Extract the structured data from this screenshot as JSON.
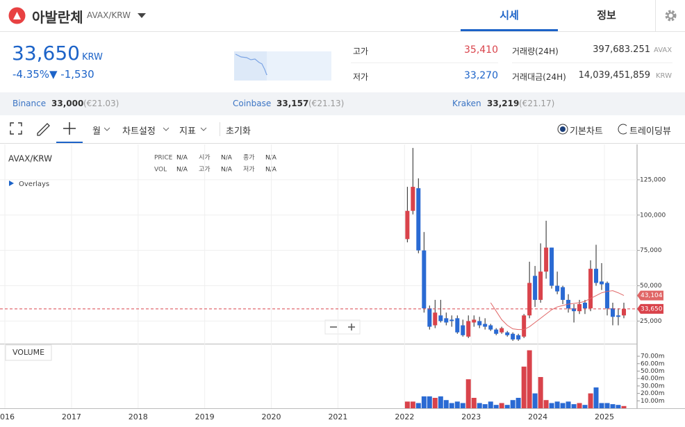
{
  "header": {
    "name": "아발란체",
    "symbol": "AVAX/KRW",
    "tabs": [
      "시세",
      "정보"
    ]
  },
  "price": {
    "value": "33,650",
    "unit": "KRW",
    "change_percent": "-4.35%",
    "change": "▼ -1,530"
  },
  "stats": [
    {
      "label": "고가",
      "value": "35,410"
    },
    {
      "label": "저가",
      "value": "33,270"
    },
    {
      "label": "거래량(24H)",
      "value": "397,683.251",
      "unit": "AVAX"
    },
    {
      "label": "거래대금(24H)",
      "value": "14,039,451,859",
      "unit": "KRW"
    }
  ],
  "exchanges": [
    {
      "name": "Binance",
      "price": "33,000",
      "eur": "(€21.03)"
    },
    {
      "name": "Coinbase",
      "price": "33,157",
      "eur": "(€21.13)"
    },
    {
      "name": "Kraken",
      "price": "33,219",
      "eur": "(€21.17)"
    }
  ],
  "toolbar": {
    "period": "월",
    "settings": "차트설정",
    "indicators": "지표",
    "reset": "초기화",
    "modes": [
      "기본차트",
      "트레이딩뷰"
    ]
  },
  "chart_legend": {
    "symbol": "AVAX/KRW",
    "overlays": "Overlays",
    "fields": [
      {
        "label": "PRICE",
        "value": "N/A"
      },
      {
        "label": "시가",
        "value": "N/A"
      },
      {
        "label": "종가",
        "value": "N/A"
      },
      {
        "label": "VOL",
        "value": "N/A"
      },
      {
        "label": "고가",
        "value": "N/A"
      },
      {
        "label": "저가",
        "value": "N/A"
      }
    ]
  },
  "chart_data": {
    "type": "candlestick",
    "x": [
      2022.042,
      2022.125,
      2022.208,
      2022.292,
      2022.375,
      2022.458,
      2022.542,
      2022.625,
      2022.708,
      2022.792,
      2022.875,
      2022.958,
      2023.042,
      2023.125,
      2023.208,
      2023.292,
      2023.375,
      2023.458,
      2023.542,
      2023.625,
      2023.708,
      2023.792,
      2023.875,
      2023.958,
      2024.042,
      2024.125,
      2024.208,
      2024.292,
      2024.375,
      2024.458,
      2024.542,
      2024.625,
      2024.708,
      2024.792,
      2024.875,
      2024.958,
      2025.042,
      2025.125,
      2025.208,
      2025.292
    ],
    "open": [
      83000,
      103000,
      119000,
      75000,
      34000,
      22000,
      29000,
      27000,
      26000,
      27000,
      22000,
      14000,
      24000,
      25000,
      23000,
      22000,
      19000,
      17000,
      17000,
      16000,
      15000,
      14000,
      29000,
      57000,
      40000,
      60000,
      77000,
      50000,
      49000,
      40000,
      34000,
      32000,
      38000,
      34000,
      62000,
      53000,
      52000,
      34000,
      29000,
      29000
    ],
    "high": [
      120000,
      147500,
      126000,
      88000,
      36000,
      40000,
      40000,
      31000,
      29000,
      29000,
      26000,
      29000,
      29000,
      28000,
      27000,
      23000,
      20000,
      21000,
      18000,
      17000,
      16000,
      30000,
      67000,
      64000,
      80000,
      96000,
      77000,
      60000,
      50000,
      44000,
      37000,
      40000,
      40000,
      68000,
      79000,
      66000,
      53000,
      38000,
      34000,
      38000
    ],
    "low": [
      80700,
      100500,
      73000,
      31000,
      19000,
      20000,
      24000,
      22000,
      21000,
      16000,
      14000,
      13000,
      21000,
      20000,
      19000,
      18000,
      15000,
      16000,
      14000,
      11000,
      11000,
      13000,
      27000,
      35000,
      38000,
      55000,
      48000,
      44000,
      37000,
      31000,
      24000,
      30000,
      30000,
      32000,
      50000,
      47000,
      29000,
      22000,
      22000,
      27000
    ],
    "close": [
      103000,
      120000,
      75000,
      34000,
      21000,
      31000,
      25000,
      24000,
      25000,
      17000,
      15000,
      25000,
      26000,
      22000,
      21000,
      19000,
      16000,
      20000,
      15000,
      12000,
      12000,
      29000,
      52000,
      40000,
      60000,
      77000,
      50000,
      46000,
      40000,
      34000,
      32000,
      37000,
      34000,
      62000,
      52000,
      51000,
      34000,
      28000,
      28000,
      33650
    ],
    "up_color": "#d9434b",
    "down_color": "#2a6ad3",
    "xlim": [
      2015.927,
      2025.49
    ],
    "xticks": [
      2016,
      2017,
      2018,
      2019,
      2020,
      2021,
      2022,
      2023,
      2024,
      2025
    ],
    "ylim": [
      9000,
      150000
    ],
    "yticks": [
      {
        "value": 25000,
        "label": "25,000"
      },
      {
        "value": 50000,
        "label": "50,000"
      },
      {
        "value": 75000,
        "label": "75,000"
      },
      {
        "value": 100000,
        "label": "100,000"
      },
      {
        "value": 125000,
        "label": "125,000"
      }
    ],
    "grid": true,
    "moving_average": {
      "color": "#e06666",
      "values": [
        null,
        null,
        null,
        null,
        null,
        null,
        null,
        null,
        null,
        null,
        null,
        null,
        null,
        null,
        null,
        38000,
        32000,
        26000,
        22000,
        19500,
        19000,
        19000,
        21000,
        24000,
        27000,
        30000,
        33000,
        35000,
        36000,
        37000,
        37500,
        38000,
        39000,
        41000,
        43000,
        45000,
        46000,
        46500,
        45000,
        43104
      ],
      "last_label": "43,104"
    },
    "current_price": 33650,
    "current_price_label": "33,650",
    "volume": {
      "label": "VOLUME",
      "values": [
        9000000,
        9000000,
        7000000,
        16000000,
        16000000,
        14000000,
        16000000,
        11000000,
        7000000,
        9000000,
        7000000,
        39000000,
        14000000,
        7000000,
        5500000,
        9000000,
        4500000,
        7000000,
        4500000,
        11000000,
        14000000,
        56000000,
        78000000,
        20000000,
        42000000,
        11000000,
        7000000,
        9000000,
        7000000,
        9000000,
        5500000,
        7000000,
        4500000,
        20000000,
        28000000,
        7000000,
        7000000,
        5500000,
        4500000,
        3000000
      ],
      "ylim": [
        0,
        85000000
      ],
      "yticks": [
        {
          "value": 10000000,
          "label": "10.00m"
        },
        {
          "value": 20000000,
          "label": "20.00m"
        },
        {
          "value": 30000000,
          "label": "30.00m"
        },
        {
          "value": 40000000,
          "label": "40.00m"
        },
        {
          "value": 50000000,
          "label": "50.00m"
        },
        {
          "value": 60000000,
          "label": "60.00m"
        },
        {
          "value": 70000000,
          "label": "70.00m"
        }
      ]
    }
  }
}
